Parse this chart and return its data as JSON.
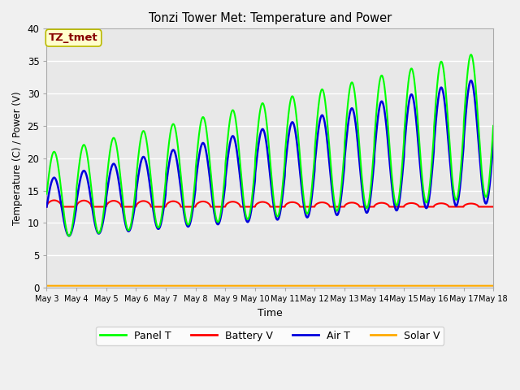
{
  "title": "Tonzi Tower Met: Temperature and Power",
  "xlabel": "Time",
  "ylabel": "Temperature (C) / Power (V)",
  "ylim": [
    0,
    40
  ],
  "xlim": [
    0,
    15
  ],
  "background_color": "#e8e8e8",
  "figure_color": "#f0f0f0",
  "annotation_text": "TZ_tmet",
  "annotation_facecolor": "#ffffcc",
  "annotation_edgecolor": "#bbbb00",
  "annotation_textcolor": "#880000",
  "line_colors": {
    "panel": "#00ff00",
    "battery": "#ff0000",
    "air": "#0000dd",
    "solar": "#ffaa00"
  },
  "line_widths": {
    "panel": 1.5,
    "battery": 1.5,
    "air": 1.8,
    "solar": 1.5
  },
  "legend_labels": [
    "Panel T",
    "Battery V",
    "Air T",
    "Solar V"
  ],
  "xtick_labels": [
    "May 3",
    "May 4",
    "May 5",
    "May 6",
    "May 7",
    "May 8",
    "May 9",
    "May 10",
    "May 11",
    "May 12",
    "May 13",
    "May 14",
    "May 15",
    "May 16",
    "May 17",
    "May 18"
  ],
  "ytick_values": [
    0,
    5,
    10,
    15,
    20,
    25,
    30,
    35,
    40
  ]
}
